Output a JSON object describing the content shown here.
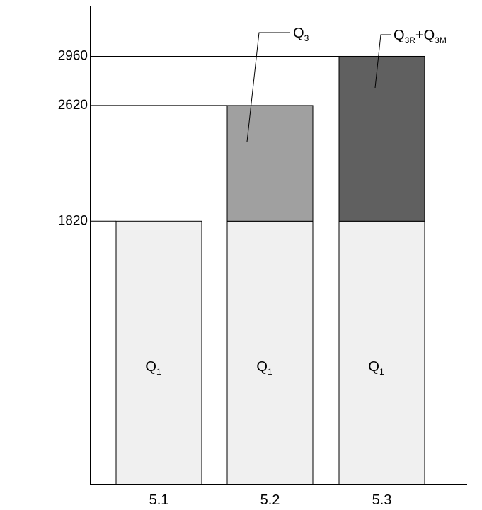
{
  "chart_data": {
    "type": "bar",
    "stacked": true,
    "categories": [
      "5.1",
      "5.2",
      "5.3"
    ],
    "series": [
      {
        "key": "Q1",
        "values": [
          1820,
          1820,
          1820
        ],
        "color": "#f0f0f0"
      },
      {
        "key": "Q3",
        "values": [
          0,
          800,
          0
        ],
        "color": "#a0a0a0"
      },
      {
        "key": "Q3R+Q3M",
        "values": [
          0,
          0,
          1140
        ],
        "color": "#606060"
      }
    ],
    "totals": [
      1820,
      2620,
      2960
    ],
    "y_ticks": [
      "1820",
      "2620",
      "2960"
    ],
    "ylim": [
      0,
      3310
    ],
    "inside_labels": [
      {
        "category_index": 0,
        "base": "Q",
        "sub": "1"
      },
      {
        "category_index": 1,
        "base": "Q",
        "sub": "1"
      },
      {
        "category_index": 2,
        "base": "Q",
        "sub": "1"
      }
    ],
    "callouts": [
      {
        "segment": "Q3",
        "category_index": 1,
        "label_base": "Q",
        "label_sub": "3",
        "label_rest": "",
        "label_sub2": ""
      },
      {
        "segment": "Q3R+Q3M",
        "category_index": 2,
        "label_base": "Q",
        "label_sub": "3R",
        "label_rest": "+Q",
        "label_sub2": "3M"
      }
    ],
    "grid": false,
    "legend": "none"
  }
}
